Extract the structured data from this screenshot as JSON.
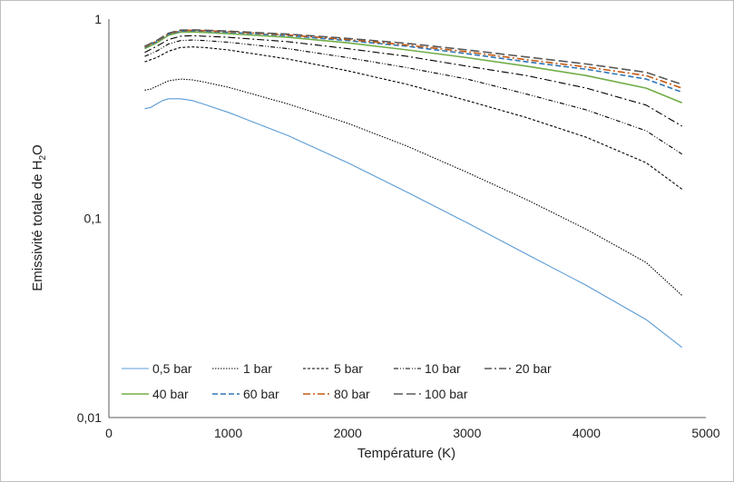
{
  "chart_data": {
    "type": "line",
    "title": "",
    "xlabel": "Température (K)",
    "ylabel": {
      "main": "Emissivité totale de H",
      "sub": "2",
      "tail": "O"
    },
    "xlim": [
      0,
      5000
    ],
    "ylim": [
      0.01,
      1
    ],
    "yscale": "log",
    "grid": false,
    "legend_position": "bottom-left, inside",
    "xticks": [
      "0",
      "1000",
      "2000",
      "3000",
      "4000",
      "5000"
    ],
    "yticks": [
      {
        "value": 1,
        "label": "1"
      },
      {
        "value": 0.1,
        "label": "0,1"
      },
      {
        "value": 0.01,
        "label": "0,01"
      }
    ],
    "series": [
      {
        "name": "0,5 bar",
        "color": "#5b9bd5",
        "dash": "",
        "width": 1.1,
        "points": [
          [
            300,
            0.355
          ],
          [
            350,
            0.36
          ],
          [
            400,
            0.375
          ],
          [
            450,
            0.39
          ],
          [
            500,
            0.398
          ],
          [
            600,
            0.398
          ],
          [
            700,
            0.39
          ],
          [
            800,
            0.373
          ],
          [
            1000,
            0.34
          ],
          [
            1500,
            0.26
          ],
          [
            2000,
            0.19
          ],
          [
            2500,
            0.135
          ],
          [
            3000,
            0.095
          ],
          [
            3500,
            0.066
          ],
          [
            4000,
            0.046
          ],
          [
            4500,
            0.031
          ],
          [
            4800,
            0.0225
          ]
        ]
      },
      {
        "name": "1 bar",
        "color": "#000000",
        "dash": "1.5,1.5",
        "width": 1.1,
        "points": [
          [
            300,
            0.44
          ],
          [
            350,
            0.445
          ],
          [
            400,
            0.46
          ],
          [
            500,
            0.49
          ],
          [
            600,
            0.5
          ],
          [
            700,
            0.495
          ],
          [
            800,
            0.483
          ],
          [
            1000,
            0.455
          ],
          [
            1500,
            0.375
          ],
          [
            2000,
            0.3
          ],
          [
            2500,
            0.23
          ],
          [
            3000,
            0.17
          ],
          [
            3500,
            0.124
          ],
          [
            4000,
            0.088
          ],
          [
            4500,
            0.06
          ],
          [
            4800,
            0.041
          ]
        ]
      },
      {
        "name": "5 bar",
        "color": "#000000",
        "dash": "3,2",
        "width": 1.1,
        "points": [
          [
            300,
            0.61
          ],
          [
            400,
            0.64
          ],
          [
            500,
            0.69
          ],
          [
            600,
            0.72
          ],
          [
            700,
            0.725
          ],
          [
            800,
            0.72
          ],
          [
            1000,
            0.7
          ],
          [
            1500,
            0.63
          ],
          [
            2000,
            0.55
          ],
          [
            2500,
            0.47
          ],
          [
            3000,
            0.39
          ],
          [
            3500,
            0.32
          ],
          [
            4000,
            0.255
          ],
          [
            4500,
            0.19
          ],
          [
            4800,
            0.14
          ]
        ]
      },
      {
        "name": "10 bar",
        "color": "#000000",
        "dash": "5,2,1,2,1,2",
        "width": 1.1,
        "points": [
          [
            300,
            0.65
          ],
          [
            400,
            0.69
          ],
          [
            500,
            0.75
          ],
          [
            600,
            0.78
          ],
          [
            700,
            0.785
          ],
          [
            800,
            0.78
          ],
          [
            1000,
            0.765
          ],
          [
            1500,
            0.71
          ],
          [
            2000,
            0.64
          ],
          [
            2500,
            0.57
          ],
          [
            3000,
            0.5
          ],
          [
            3500,
            0.42
          ],
          [
            4000,
            0.35
          ],
          [
            4500,
            0.275
          ],
          [
            4800,
            0.21
          ]
        ]
      },
      {
        "name": "20 bar",
        "color": "#000000",
        "dash": "8,3,2,3",
        "width": 1.1,
        "points": [
          [
            300,
            0.68
          ],
          [
            400,
            0.73
          ],
          [
            500,
            0.79
          ],
          [
            600,
            0.82
          ],
          [
            700,
            0.825
          ],
          [
            800,
            0.82
          ],
          [
            1000,
            0.81
          ],
          [
            1500,
            0.77
          ],
          [
            2000,
            0.71
          ],
          [
            2500,
            0.65
          ],
          [
            3000,
            0.58
          ],
          [
            3500,
            0.52
          ],
          [
            4000,
            0.45
          ],
          [
            4500,
            0.37
          ],
          [
            4800,
            0.29
          ]
        ]
      },
      {
        "name": "40 bar",
        "color": "#70ad47",
        "dash": "",
        "width": 1.6,
        "points": [
          [
            300,
            0.71
          ],
          [
            400,
            0.76
          ],
          [
            500,
            0.83
          ],
          [
            600,
            0.86
          ],
          [
            700,
            0.862
          ],
          [
            800,
            0.857
          ],
          [
            1000,
            0.845
          ],
          [
            1500,
            0.81
          ],
          [
            2000,
            0.76
          ],
          [
            2500,
            0.7
          ],
          [
            3000,
            0.64
          ],
          [
            3500,
            0.58
          ],
          [
            4000,
            0.52
          ],
          [
            4500,
            0.45
          ],
          [
            4800,
            0.38
          ]
        ]
      },
      {
        "name": "60 bar",
        "color": "#2e75b6",
        "dash": "6,3",
        "width": 1.6,
        "points": [
          [
            300,
            0.72
          ],
          [
            400,
            0.77
          ],
          [
            500,
            0.84
          ],
          [
            600,
            0.87
          ],
          [
            700,
            0.873
          ],
          [
            800,
            0.869
          ],
          [
            1000,
            0.858
          ],
          [
            1500,
            0.825
          ],
          [
            2000,
            0.78
          ],
          [
            2500,
            0.73
          ],
          [
            3000,
            0.67
          ],
          [
            3500,
            0.61
          ],
          [
            4000,
            0.56
          ],
          [
            4500,
            0.5
          ],
          [
            4800,
            0.43
          ]
        ]
      },
      {
        "name": "80 bar",
        "color": "#c55a11",
        "dash": "8,3,2,3",
        "width": 1.6,
        "points": [
          [
            300,
            0.725
          ],
          [
            400,
            0.775
          ],
          [
            500,
            0.845
          ],
          [
            600,
            0.875
          ],
          [
            700,
            0.878
          ],
          [
            800,
            0.874
          ],
          [
            1000,
            0.864
          ],
          [
            1500,
            0.832
          ],
          [
            2000,
            0.79
          ],
          [
            2500,
            0.74
          ],
          [
            3000,
            0.685
          ],
          [
            3500,
            0.625
          ],
          [
            4000,
            0.575
          ],
          [
            4500,
            0.52
          ],
          [
            4800,
            0.45
          ]
        ]
      },
      {
        "name": "100 bar",
        "color": "#595959",
        "dash": "10,4",
        "width": 1.6,
        "points": [
          [
            300,
            0.73
          ],
          [
            400,
            0.78
          ],
          [
            500,
            0.85
          ],
          [
            600,
            0.88
          ],
          [
            700,
            0.883
          ],
          [
            800,
            0.879
          ],
          [
            1000,
            0.87
          ],
          [
            1500,
            0.84
          ],
          [
            2000,
            0.8
          ],
          [
            2500,
            0.755
          ],
          [
            3000,
            0.7
          ],
          [
            3500,
            0.645
          ],
          [
            4000,
            0.595
          ],
          [
            4500,
            0.54
          ],
          [
            4800,
            0.47
          ]
        ]
      }
    ]
  }
}
